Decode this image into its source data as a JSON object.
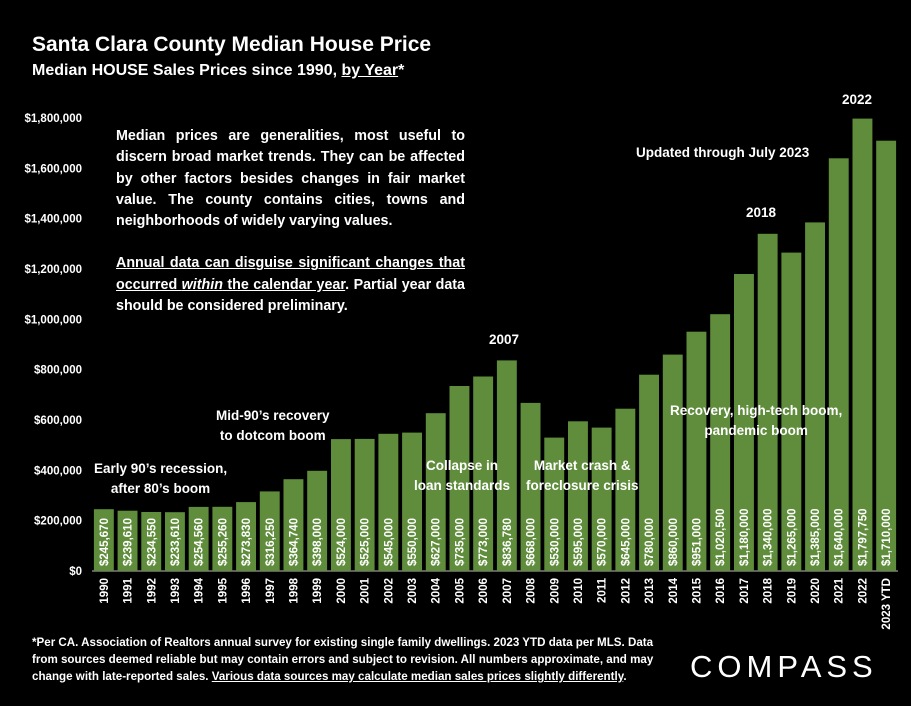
{
  "header": {
    "title": "Santa Clara County Median House Price",
    "subtitle_pre": "Median HOUSE Sales Prices since 1990, ",
    "subtitle_link": "by Year",
    "subtitle_post": "*"
  },
  "notes": {
    "para1": "Median prices are generalities, most useful to discern broad market trends. They can be affected by other factors besides changes in fair market value. The county contains cities, towns and neighborhoods of widely varying values.",
    "para2_u1": "Annual data can disguise significant changes that occurred ",
    "para2_u2": "within",
    "para2_u3": " the calendar year",
    "para2_rest": ". Partial year data should be considered preliminary."
  },
  "annotations": {
    "early90s_1": "Early 90’s recession,",
    "early90s_2": "after 80’s boom",
    "mid90s_1": "Mid-90’s recovery",
    "mid90s_2": "to dotcom boom",
    "collapse_1": "Collapse in",
    "collapse_2": "loan standards",
    "crash_1": "Market crash &",
    "crash_2": "foreclosure crisis",
    "recovery_1": "Recovery, high-tech boom,",
    "recovery_2": "pandemic boom",
    "updated": "Updated through July 2023",
    "y2007": "2007",
    "y2018": "2018",
    "y2022": "2022"
  },
  "footnote": {
    "text": "*Per CA. Association of Realtors annual survey for existing single family dwellings. 2023 YTD data per MLS. Data from sources deemed reliable but may contain errors and subject to revision. All numbers approximate, and may change with late-reported sales. ",
    "underlined": "Various data sources may calculate median sales prices slightly differently",
    "end": "."
  },
  "logo": "COMPASS",
  "colors": {
    "bar": "#5f8d3c",
    "bar_label": "#ffffff",
    "background": "#000000",
    "text": "#ffffff"
  },
  "chart_data": {
    "type": "bar",
    "title": "Santa Clara County Median House Price",
    "subtitle": "Median HOUSE Sales Prices since 1990, by Year*",
    "categories": [
      "1990",
      "1991",
      "1992",
      "1993",
      "1994",
      "1995",
      "1996",
      "1997",
      "1998",
      "1999",
      "2000",
      "2001",
      "2002",
      "2003",
      "2004",
      "2005",
      "2006",
      "2007",
      "2008",
      "2009",
      "2010",
      "2011",
      "2012",
      "2013",
      "2014",
      "2015",
      "2016",
      "2017",
      "2018",
      "2019",
      "2020",
      "2021",
      "2022",
      "2023 YTD"
    ],
    "values": [
      245670,
      239610,
      234550,
      233610,
      254560,
      255260,
      273830,
      316250,
      364740,
      398000,
      524000,
      525000,
      545000,
      550000,
      627000,
      735000,
      773000,
      836780,
      668000,
      530000,
      595000,
      570000,
      645000,
      780000,
      860000,
      951000,
      1020500,
      1180000,
      1340000,
      1265000,
      1385000,
      1640000,
      1797750,
      1710000
    ],
    "labels": [
      "$245,670",
      "$239,610",
      "$234,550",
      "$233,610",
      "$254,560",
      "$255,260",
      "$273,830",
      "$316,250",
      "$364,740",
      "$398,000",
      "$524,000",
      "$525,000",
      "$545,000",
      "$550,000",
      "$627,000",
      "$735,000",
      "$773,000",
      "$836,780",
      "$668,000",
      "$530,000",
      "$595,000",
      "$570,000",
      "$645,000",
      "$780,000",
      "$860,000",
      "$951,000",
      "$1,020,500",
      "$1,180,000",
      "$1,340,000",
      "$1,265,000",
      "$1,385,000",
      "$1,640,000",
      "$1,797,750",
      "$1,710,000"
    ],
    "yticks": [
      0,
      200000,
      400000,
      600000,
      800000,
      1000000,
      1200000,
      1400000,
      1600000,
      1800000
    ],
    "ytick_labels": [
      "$0",
      "$200,000",
      "$400,000",
      "$600,000",
      "$800,000",
      "$1,000,000",
      "$1,200,000",
      "$1,400,000",
      "$1,600,000",
      "$1,800,000"
    ],
    "ylim": [
      0,
      1800000
    ],
    "xlabel": "",
    "ylabel": "",
    "grid": false,
    "legend": "none"
  }
}
